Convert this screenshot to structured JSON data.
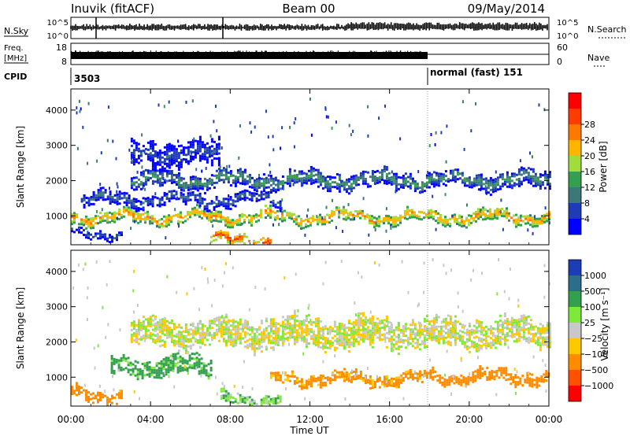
{
  "header": {
    "station": "Inuvik (fitACF)",
    "beam": "Beam 00",
    "date": "09/May/2014"
  },
  "strips": {
    "nsky": {
      "label": "N.Sky",
      "ticks_left": [
        "10^5",
        "10^0"
      ],
      "ticks_right": [
        "10^5",
        "10^0"
      ],
      "right_label": "N.Search"
    },
    "freq": {
      "label_line1": "Freq.",
      "label_line2": "[MHz]",
      "ticks_left": [
        "18",
        "8"
      ],
      "ticks_right": [
        "60",
        "0"
      ],
      "right_label": "Nave"
    },
    "cpid": {
      "label": "CPID",
      "left_text": "3503",
      "right_text": "normal (fast) 151"
    }
  },
  "time_axis": {
    "label": "Time UT",
    "ticks": [
      "00:00",
      "04:00",
      "08:00",
      "12:00",
      "16:00",
      "20:00",
      "00:00"
    ]
  },
  "colors": {
    "power": [
      "#0000ff",
      "#1e3cb4",
      "#3c7878",
      "#32a050",
      "#a0dc3c",
      "#ffb400",
      "#ff7800",
      "#ff3c00",
      "#ff0000"
    ],
    "velocity": [
      "#ff0000",
      "#ff5000",
      "#ff8c00",
      "#ffc800",
      "#c8c8c8",
      "#7fe83c",
      "#32a050",
      "#2a6e8c",
      "#1e3cb4"
    ]
  },
  "chart_data": [
    {
      "type": "heatmap",
      "ylabel": "Slant Range [km]",
      "xlabel": "Time UT",
      "x_range": [
        "00:00",
        "24:00"
      ],
      "y_range_km": [
        180,
        4600
      ],
      "yticks": [
        "1000",
        "2000",
        "3000",
        "4000"
      ],
      "colorbar_label": "Power [dB]",
      "colorbar_ticks": [
        "4",
        "8",
        "12",
        "16",
        "20",
        "24",
        "28"
      ],
      "colorbar_range": [
        0,
        32
      ],
      "bands": [
        {
          "t_start": 0.0,
          "t_end": 24.0,
          "range_center_km": 1000,
          "range_halfwidth_km": 150,
          "level": 22
        },
        {
          "t_start": 3.0,
          "t_end": 24.0,
          "range_center_km": 2050,
          "range_halfwidth_km": 220,
          "level": 12
        },
        {
          "t_start": 0.5,
          "t_end": 10.5,
          "range_center_km": 1500,
          "range_halfwidth_km": 160,
          "level": 9
        },
        {
          "t_start": 7.0,
          "t_end": 10.0,
          "range_center_km": 350,
          "range_halfwidth_km": 120,
          "level": 27
        },
        {
          "t_start": 0.0,
          "t_end": 2.5,
          "range_center_km": 550,
          "range_halfwidth_km": 100,
          "level": 8
        },
        {
          "t_start": 3.0,
          "t_end": 7.5,
          "range_center_km": 2800,
          "range_halfwidth_km": 350,
          "level": 7
        }
      ]
    },
    {
      "type": "heatmap",
      "ylabel": "Slant Range [km]",
      "xlabel": "Time UT",
      "x_range": [
        "00:00",
        "24:00"
      ],
      "y_range_km": [
        180,
        4600
      ],
      "yticks": [
        "1000",
        "2000",
        "3000",
        "4000"
      ],
      "colorbar_label": "Velocity [m s⁻¹]",
      "colorbar_ticks": [
        "1000",
        "500",
        "100",
        "25",
        "−25",
        "−100",
        "−500",
        "−1000"
      ],
      "bands": [
        {
          "t_start": 18.0,
          "t_end": 24.0,
          "range_center_km": 1050,
          "range_halfwidth_km": 150,
          "velocity": -250
        },
        {
          "t_start": 2.0,
          "t_end": 7.0,
          "range_center_km": 1350,
          "range_halfwidth_km": 250,
          "velocity": 150
        },
        {
          "t_start": 0.0,
          "t_end": 2.5,
          "range_center_km": 550,
          "range_halfwidth_km": 150,
          "velocity": -400
        },
        {
          "t_start": 3.0,
          "t_end": 24.0,
          "range_center_km": 2300,
          "range_halfwidth_km": 400,
          "velocity": 0
        },
        {
          "t_start": 7.5,
          "t_end": 10.5,
          "range_center_km": 400,
          "range_halfwidth_km": 150,
          "velocity": 80
        },
        {
          "t_start": 10.0,
          "t_end": 18.0,
          "range_center_km": 1000,
          "range_halfwidth_km": 150,
          "velocity": -150
        }
      ]
    }
  ]
}
